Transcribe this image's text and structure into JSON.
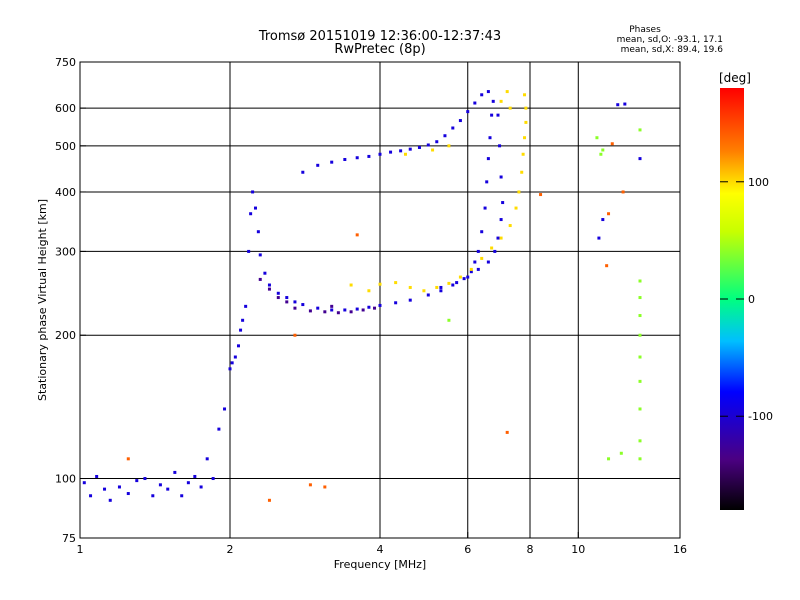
{
  "header": {
    "title_line1": "Tromsø 20151019 12:36:00-12:37:43",
    "title_line2": "RwPretec (8p)",
    "stats_title": "Phases",
    "stats_o": "mean, sd,O: -93.1, 17.1",
    "stats_x": "mean, sd,X:  89.4, 19.6"
  },
  "colorbar": {
    "label": "[deg]",
    "ticks": [
      {
        "value": 100,
        "label": "100"
      },
      {
        "value": 0,
        "label": "0"
      },
      {
        "value": -100,
        "label": "-100"
      }
    ],
    "range": [
      -180,
      180
    ]
  },
  "chart_data": {
    "type": "scatter",
    "title": "Tromsø 20151019 12:36:00-12:37:43",
    "subtitle": "RwPretec (8p)",
    "xlabel": "Frequency [MHz]",
    "ylabel": "Stationary phase Virtual Height [km]",
    "xscale": "log",
    "yscale": "log",
    "xlim": [
      1,
      16
    ],
    "ylim": [
      75,
      750
    ],
    "xticks": [
      {
        "value": 1,
        "label": "1"
      },
      {
        "value": 2,
        "label": "2"
      },
      {
        "value": 4,
        "label": "4"
      },
      {
        "value": 6,
        "label": "6"
      },
      {
        "value": 8,
        "label": "8"
      },
      {
        "value": 10,
        "label": "10"
      },
      {
        "value": 16,
        "label": "16"
      }
    ],
    "yticks": [
      {
        "value": 75,
        "label": "75"
      },
      {
        "value": 100,
        "label": "100"
      },
      {
        "value": 200,
        "label": "200"
      },
      {
        "value": 300,
        "label": "300"
      },
      {
        "value": 400,
        "label": "400"
      },
      {
        "value": 500,
        "label": "500"
      },
      {
        "value": 600,
        "label": "600"
      },
      {
        "value": 750,
        "label": "750"
      }
    ],
    "grid_x": [
      2,
      4,
      6,
      8,
      10
    ],
    "grid_y": [
      100,
      200,
      300,
      400,
      500,
      600
    ],
    "color_scale": "phase degrees, -180 black/purple to 180 red",
    "series": [
      {
        "phase": -95,
        "points": [
          [
            1.02,
            98
          ],
          [
            1.05,
            92
          ],
          [
            1.08,
            101
          ],
          [
            1.12,
            95
          ],
          [
            1.15,
            90
          ],
          [
            1.2,
            96
          ],
          [
            1.25,
            93
          ],
          [
            1.3,
            99
          ],
          [
            1.35,
            100
          ],
          [
            1.4,
            92
          ],
          [
            1.45,
            97
          ],
          [
            1.5,
            95
          ],
          [
            1.55,
            103
          ],
          [
            1.6,
            92
          ],
          [
            1.65,
            98
          ],
          [
            1.7,
            101
          ],
          [
            1.75,
            96
          ],
          [
            1.8,
            110
          ],
          [
            1.85,
            100
          ],
          [
            1.9,
            127
          ],
          [
            1.95,
            140
          ],
          [
            2.0,
            170
          ],
          [
            2.02,
            175
          ],
          [
            2.05,
            180
          ],
          [
            2.08,
            190
          ],
          [
            2.1,
            205
          ],
          [
            2.12,
            215
          ],
          [
            2.15,
            230
          ],
          [
            2.18,
            300
          ],
          [
            2.2,
            360
          ],
          [
            2.22,
            400
          ],
          [
            2.25,
            370
          ],
          [
            2.28,
            330
          ],
          [
            2.3,
            295
          ],
          [
            2.35,
            270
          ],
          [
            2.4,
            255
          ],
          [
            2.5,
            245
          ],
          [
            2.6,
            240
          ],
          [
            2.7,
            235
          ],
          [
            2.8,
            232
          ],
          [
            3.0,
            228
          ],
          [
            3.2,
            226
          ],
          [
            3.4,
            226
          ],
          [
            3.6,
            227
          ],
          [
            3.8,
            229
          ],
          [
            4.0,
            231
          ],
          [
            4.3,
            234
          ],
          [
            4.6,
            237
          ],
          [
            5.0,
            243
          ],
          [
            5.3,
            248
          ],
          [
            5.6,
            255
          ],
          [
            5.9,
            263
          ],
          [
            6.1,
            272
          ],
          [
            6.2,
            285
          ],
          [
            6.3,
            300
          ],
          [
            6.4,
            330
          ],
          [
            6.5,
            370
          ],
          [
            6.55,
            420
          ],
          [
            6.6,
            470
          ],
          [
            6.65,
            520
          ],
          [
            6.7,
            580
          ],
          [
            6.75,
            620
          ],
          [
            2.8,
            440
          ],
          [
            3.0,
            455
          ],
          [
            3.2,
            462
          ],
          [
            3.4,
            468
          ],
          [
            3.6,
            472
          ],
          [
            3.8,
            475
          ],
          [
            4.0,
            480
          ],
          [
            4.2,
            485
          ],
          [
            4.4,
            488
          ],
          [
            4.6,
            492
          ],
          [
            4.8,
            496
          ],
          [
            5.0,
            502
          ],
          [
            5.2,
            510
          ],
          [
            5.4,
            525
          ],
          [
            5.6,
            545
          ],
          [
            5.8,
            565
          ],
          [
            6.0,
            590
          ],
          [
            6.2,
            615
          ],
          [
            6.4,
            640
          ],
          [
            6.6,
            650
          ],
          [
            6.9,
            580
          ],
          [
            6.95,
            500
          ],
          [
            7.0,
            430
          ],
          [
            7.05,
            380
          ],
          [
            7.0,
            350
          ],
          [
            6.9,
            320
          ],
          [
            6.8,
            300
          ],
          [
            6.6,
            285
          ],
          [
            6.3,
            275
          ],
          [
            6.0,
            265
          ],
          [
            5.7,
            258
          ],
          [
            5.3,
            252
          ],
          [
            12.0,
            610
          ],
          [
            12.4,
            612
          ],
          [
            13.3,
            470
          ],
          [
            11.0,
            320
          ],
          [
            11.2,
            350
          ]
        ]
      },
      {
        "phase": -130,
        "points": [
          [
            2.7,
            228
          ],
          [
            2.9,
            225
          ],
          [
            3.1,
            224
          ],
          [
            3.3,
            223
          ],
          [
            3.5,
            224
          ],
          [
            3.7,
            226
          ],
          [
            2.6,
            235
          ],
          [
            2.5,
            240
          ],
          [
            2.4,
            250
          ],
          [
            2.3,
            262
          ],
          [
            3.9,
            228
          ],
          [
            3.2,
            230
          ]
        ]
      },
      {
        "phase": 100,
        "points": [
          [
            4.0,
            256
          ],
          [
            4.3,
            258
          ],
          [
            4.6,
            252
          ],
          [
            4.9,
            248
          ],
          [
            5.2,
            252
          ],
          [
            5.5,
            257
          ],
          [
            5.8,
            265
          ],
          [
            6.1,
            275
          ],
          [
            6.4,
            290
          ],
          [
            6.7,
            305
          ],
          [
            7.0,
            320
          ],
          [
            7.3,
            340
          ],
          [
            7.5,
            370
          ],
          [
            7.6,
            400
          ],
          [
            7.7,
            440
          ],
          [
            7.75,
            480
          ],
          [
            7.8,
            520
          ],
          [
            7.85,
            560
          ],
          [
            7.85,
            600
          ],
          [
            7.8,
            640
          ],
          [
            7.2,
            650
          ],
          [
            7.0,
            620
          ],
          [
            7.3,
            600
          ],
          [
            4.5,
            480
          ],
          [
            5.1,
            490
          ],
          [
            5.5,
            500
          ],
          [
            3.5,
            255
          ],
          [
            3.8,
            248
          ]
        ]
      },
      {
        "phase": 40,
        "points": [
          [
            13.3,
            260
          ],
          [
            13.3,
            240
          ],
          [
            13.3,
            220
          ],
          [
            13.3,
            200
          ],
          [
            13.3,
            180
          ],
          [
            13.3,
            160
          ],
          [
            13.3,
            140
          ],
          [
            13.3,
            120
          ],
          [
            13.3,
            110
          ],
          [
            13.3,
            540
          ],
          [
            11.1,
            480
          ],
          [
            11.2,
            490
          ],
          [
            10.9,
            520
          ],
          [
            11.5,
            110
          ],
          [
            12.2,
            113
          ],
          [
            5.5,
            215
          ]
        ]
      },
      {
        "phase": 140,
        "points": [
          [
            3.6,
            325
          ],
          [
            7.2,
            125
          ],
          [
            8.4,
            395
          ],
          [
            12.3,
            400
          ],
          [
            11.4,
            280
          ],
          [
            11.5,
            360
          ],
          [
            11.7,
            505
          ],
          [
            2.4,
            90
          ],
          [
            1.25,
            110
          ],
          [
            2.7,
            200
          ],
          [
            2.9,
            97
          ],
          [
            3.1,
            96
          ]
        ]
      }
    ]
  }
}
